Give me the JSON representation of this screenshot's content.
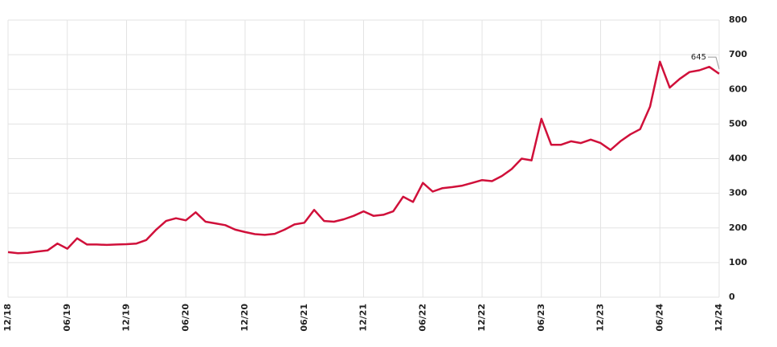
{
  "chart_data": {
    "type": "line",
    "categories": [
      "12/18",
      null,
      null,
      null,
      null,
      null,
      "06/19",
      null,
      null,
      null,
      null,
      null,
      "12/19",
      null,
      null,
      null,
      null,
      null,
      "06/20",
      null,
      null,
      null,
      null,
      null,
      "12/20",
      null,
      null,
      null,
      null,
      null,
      "06/21",
      null,
      null,
      null,
      null,
      null,
      "12/21",
      null,
      null,
      null,
      null,
      null,
      "06/22",
      null,
      null,
      null,
      null,
      null,
      "12/22",
      null,
      null,
      null,
      null,
      null,
      "06/23",
      null,
      null,
      null,
      null,
      null,
      "12/23",
      null,
      null,
      null,
      null,
      null,
      "06/24",
      null,
      null,
      null,
      null,
      null,
      "12/24"
    ],
    "series": [
      {
        "name": null,
        "color": "#d0103a",
        "values": [
          130,
          127,
          128,
          132,
          135,
          155,
          140,
          170,
          152,
          152,
          151,
          152,
          153,
          155,
          165,
          195,
          220,
          228,
          222,
          245,
          218,
          213,
          208,
          195,
          188,
          182,
          180,
          183,
          195,
          210,
          215,
          252,
          220,
          218,
          225,
          235,
          248,
          235,
          238,
          248,
          290,
          275,
          330,
          305,
          315,
          318,
          322,
          330,
          338,
          335,
          350,
          370,
          400,
          395,
          515,
          440,
          440,
          450,
          445,
          455,
          445,
          425,
          450,
          470,
          485,
          550,
          680,
          605,
          630,
          650,
          655,
          665,
          645
        ]
      }
    ],
    "annotation": "645",
    "ylim": [
      0,
      800
    ],
    "yticks": [
      0,
      100,
      200,
      300,
      400,
      500,
      600,
      700,
      800
    ],
    "grid": true
  }
}
